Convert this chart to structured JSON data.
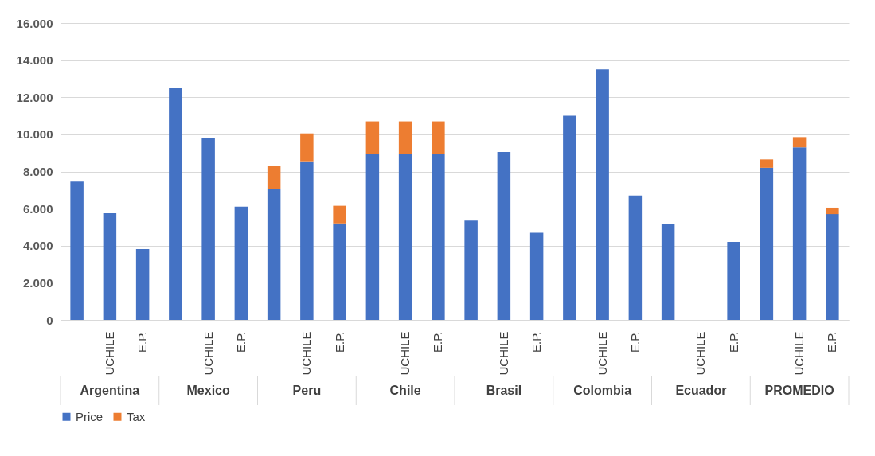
{
  "chart_data": {
    "type": "bar",
    "stacked": true,
    "categories": [
      null,
      "UCHILE",
      "E.P.",
      null,
      "UCHILE",
      "E.P.",
      null,
      "UCHILE",
      "E.P.",
      null,
      "UCHILE",
      "E.P.",
      null,
      "UCHILE",
      "E.P.",
      null,
      "UCHILE",
      "E.P.",
      null,
      "UCHILE",
      "E.P.",
      null,
      "UCHILE",
      "E.P."
    ],
    "annotations": [
      "Argentina",
      "Mexico",
      "Peru",
      "Chile",
      "Brasil",
      "Colombia",
      "Ecuador",
      "PROMEDIO"
    ],
    "series": [
      {
        "name": "Price",
        "color": "#4472c4",
        "values": [
          7450,
          5750,
          3820,
          12500,
          9800,
          6100,
          7050,
          8550,
          5200,
          8950,
          8950,
          8950,
          5350,
          9050,
          4700,
          11000,
          13500,
          6700,
          5150,
          null,
          4200,
          8200,
          9300,
          5700
        ]
      },
      {
        "name": "Tax",
        "color": "#ed7d31",
        "values": [
          null,
          null,
          null,
          null,
          null,
          null,
          1250,
          1500,
          950,
          1750,
          1750,
          1750,
          null,
          null,
          null,
          null,
          null,
          null,
          null,
          null,
          null,
          450,
          550,
          350
        ]
      }
    ],
    "ylim": [
      0,
      16000
    ],
    "yticks": [
      0,
      {
        "value": 2000,
        "label": "2.000"
      },
      {
        "value": 4000,
        "label": "4.000"
      },
      {
        "value": 6000,
        "label": "6.000"
      },
      {
        "value": 8000,
        "label": "8.000"
      },
      {
        "value": 10000,
        "label": "10.000"
      },
      {
        "value": 12000,
        "label": "12.000"
      },
      {
        "value": 14000,
        "label": "14.000"
      },
      {
        "value": 16000,
        "label": "16.000"
      }
    ],
    "grid": "y",
    "legend": "bottom"
  }
}
